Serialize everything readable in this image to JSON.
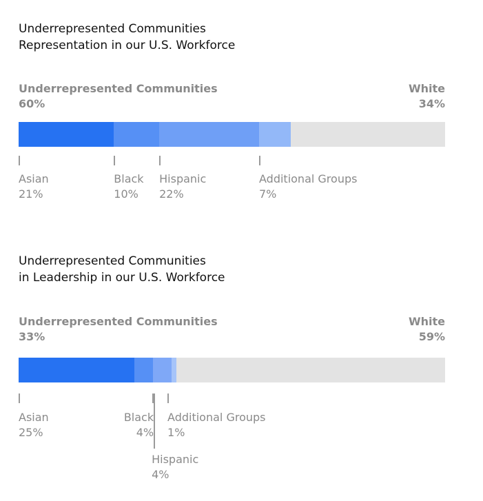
{
  "chart_data": [
    {
      "type": "bar",
      "title": [
        "Underrepresented Communities",
        "Representation in our U.S. Workforce"
      ],
      "left_group": {
        "name": "Underrepresented Communities",
        "value": "60%"
      },
      "right_group": {
        "name": "White",
        "value": "34%"
      },
      "categories": [
        "Asian",
        "Black",
        "Hispanic",
        "Additional Groups"
      ],
      "values": [
        21,
        10,
        22,
        7
      ],
      "value_labels": [
        "21%",
        "10%",
        "22%",
        "7%"
      ],
      "colors": [
        "#2672f2",
        "#5690f5",
        "#6f9ff6",
        "#93b8f8"
      ],
      "remainder_color": "#e3e3e3",
      "xlim": [
        0,
        94
      ]
    },
    {
      "type": "bar",
      "title": [
        "Underrepresented Communities",
        "in Leadership in our U.S. Workforce"
      ],
      "left_group": {
        "name": "Underrepresented Communities",
        "value": "33%"
      },
      "right_group": {
        "name": "White",
        "value": "59%"
      },
      "categories": [
        "Asian",
        "Black",
        "Hispanic",
        "Additional Groups"
      ],
      "values": [
        25,
        4,
        4,
        1
      ],
      "value_labels": [
        "25%",
        "4%",
        "4%",
        "1%"
      ],
      "colors": [
        "#2672f2",
        "#5690f5",
        "#7fa8f7",
        "#a6c4f9"
      ],
      "remainder_color": "#e3e3e3",
      "xlim": [
        0,
        92
      ]
    }
  ]
}
